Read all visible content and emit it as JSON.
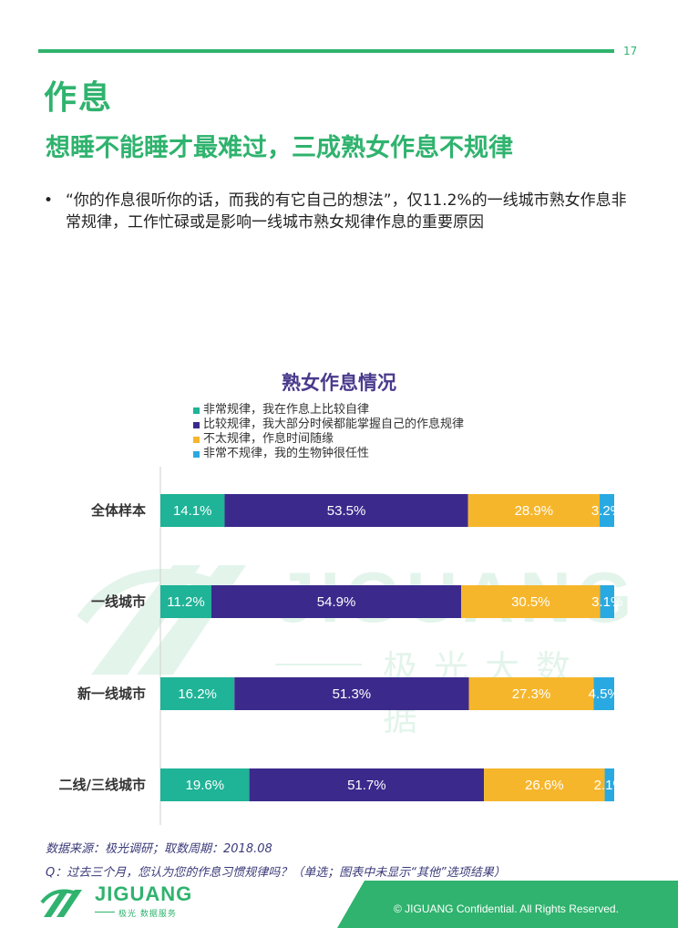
{
  "page": {
    "number": "17"
  },
  "header": {
    "title": "作息",
    "subtitle": "想睡不能睡才最难过，三成熟女作息不规律"
  },
  "bullet": {
    "symbol": "•",
    "text": "“你的作息很听你的话，而我的有它自己的想法”，仅11.2%的一线城市熟女作息非常规律，工作忙碌或是影响一线城市熟女规律作息的重要原因"
  },
  "watermark": {
    "text": "JIGUANG",
    "cn": "极光大数据"
  },
  "chart_data": {
    "type": "bar",
    "orientation": "horizontal",
    "stacked": true,
    "title": "熟女作息情况",
    "categories": [
      "全体样本",
      "一线城市",
      "新一线城市",
      "二线/三线城市"
    ],
    "series": [
      {
        "name": "非常规律，我在作息上比较自律",
        "color": "#1fb397",
        "values": [
          14.1,
          11.2,
          16.2,
          19.6
        ]
      },
      {
        "name": "比较规律，我大部分时候都能掌握自己的作息规律",
        "color": "#3b2a8c",
        "values": [
          53.5,
          54.9,
          51.3,
          51.7
        ]
      },
      {
        "name": "不太规律，作息时间随缘",
        "color": "#f6b62c",
        "values": [
          28.9,
          30.5,
          27.3,
          26.6
        ]
      },
      {
        "name": "非常不规律，我的生物钟很任性",
        "color": "#29a9e1",
        "values": [
          3.2,
          3.1,
          4.5,
          2.1
        ]
      }
    ],
    "value_suffix": "%",
    "legend_position": "top",
    "grid": false
  },
  "notes": {
    "source": "数据来源：极光调研；取数周期：2018.08",
    "question": "Q：过去三个月，您认为您的作息习惯规律吗？（单选；图表中未显示“其他”选项结果）"
  },
  "footer": {
    "logo_text": "JIGUANG",
    "logo_sub": "极光 数据服务",
    "copyright": "© JIGUANG Confidential. All Rights Reserved.",
    "band_color": "#2fb36e"
  }
}
